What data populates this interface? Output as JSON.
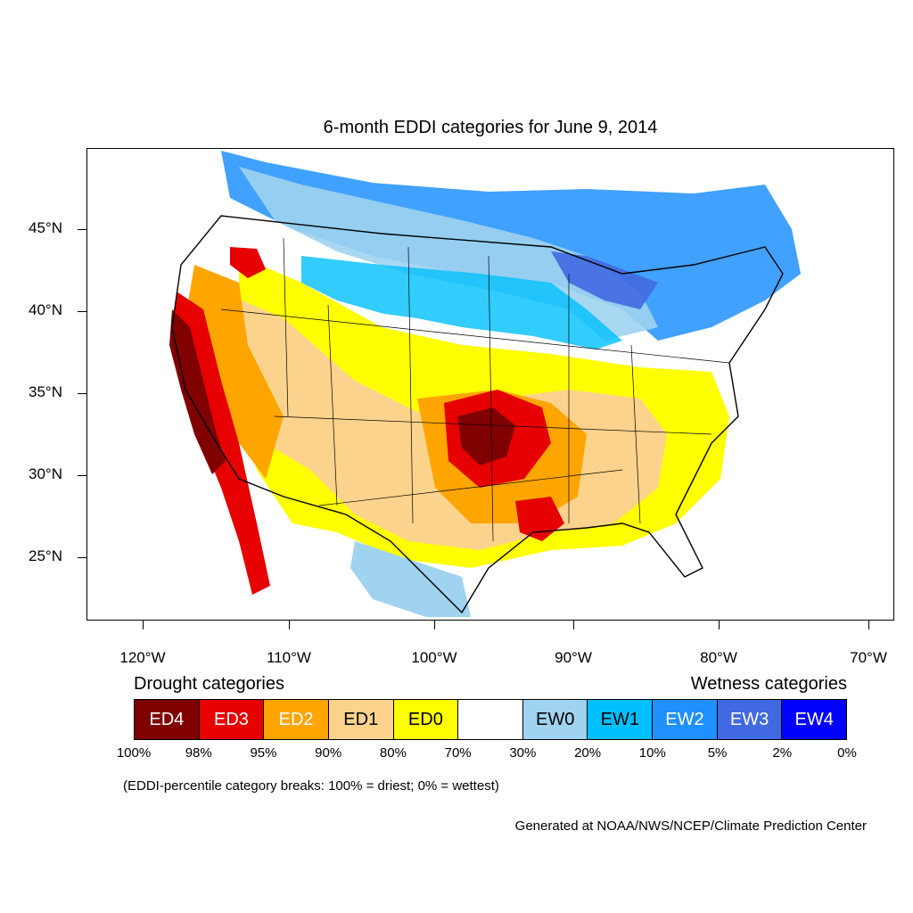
{
  "title": "6-month EDDI categories for June 9, 2014",
  "y_axis": [
    "45°N",
    "40°N",
    "35°N",
    "30°N",
    "25°N"
  ],
  "x_axis": [
    "120°W",
    "110°W",
    "100°W",
    "90°W",
    "80°W",
    "70°W"
  ],
  "legend": {
    "drought_heading": "Drought categories",
    "wetness_heading": "Wetness categories",
    "categories": [
      {
        "label": "ED4",
        "color": "#800000",
        "text_color": "#ffffff"
      },
      {
        "label": "ED3",
        "color": "#e60000",
        "text_color": "#ffffff"
      },
      {
        "label": "ED2",
        "color": "#ffa500",
        "text_color": "#ffffff"
      },
      {
        "label": "ED1",
        "color": "#fcd38c",
        "text_color": "#000000"
      },
      {
        "label": "ED0",
        "color": "#ffff00",
        "text_color": "#000000"
      },
      {
        "label": "",
        "color": "#ffffff",
        "text_color": "#000000"
      },
      {
        "label": "EW0",
        "color": "#9fd3f0",
        "text_color": "#000000"
      },
      {
        "label": "EW1",
        "color": "#00bfff",
        "text_color": "#000000"
      },
      {
        "label": "EW2",
        "color": "#1e90ff",
        "text_color": "#ffffff"
      },
      {
        "label": "EW3",
        "color": "#4169e1",
        "text_color": "#ffffff"
      },
      {
        "label": "EW4",
        "color": "#0000ff",
        "text_color": "#ffffff"
      }
    ],
    "breaks": [
      "100%",
      "98%",
      "95%",
      "90%",
      "80%",
      "70%",
      "30%",
      "20%",
      "10%",
      "5%",
      "2%",
      "0%"
    ]
  },
  "note": "(EDDI-percentile category breaks: 100% = driest; 0% = wettest)",
  "credit": "Generated at NOAA/NWS/NCEP/Climate Prediction Center"
}
